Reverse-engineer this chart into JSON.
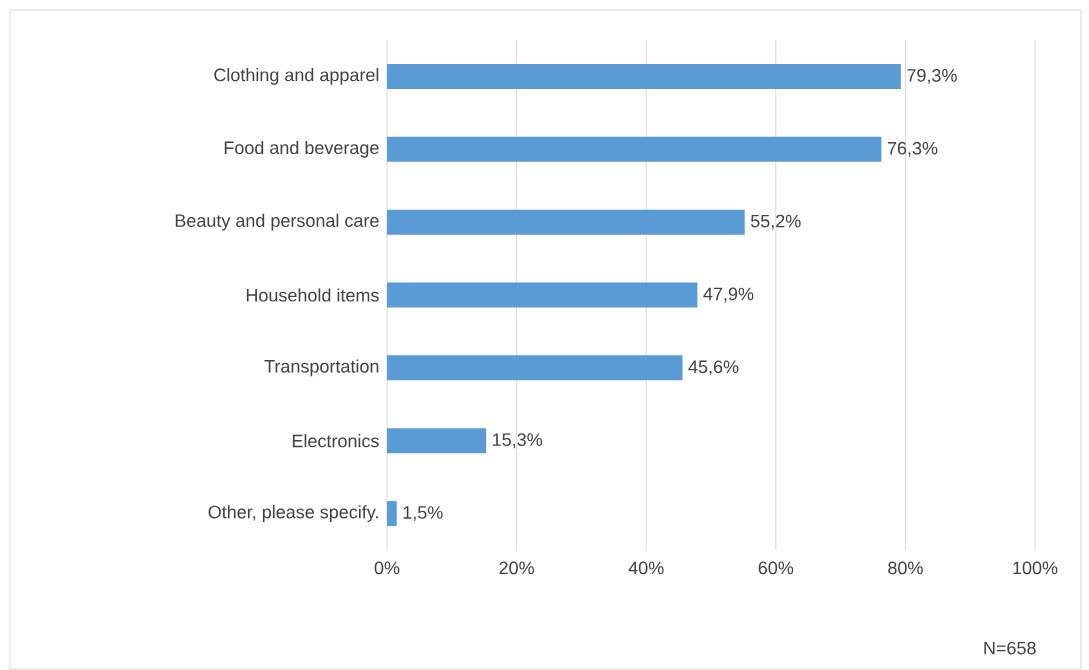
{
  "chart_data": {
    "type": "bar",
    "orientation": "horizontal",
    "categories": [
      "Clothing and apparel",
      "Food and beverage",
      "Beauty and personal care",
      "Household items",
      "Transportation",
      "Electronics",
      "Other, please specify."
    ],
    "values": [
      79.3,
      76.3,
      55.2,
      47.9,
      45.6,
      15.3,
      1.5
    ],
    "value_labels": [
      "79,3%",
      "76,3%",
      "55,2%",
      "47,9%",
      "45,6%",
      "15,3%",
      "1,5%"
    ],
    "color": "#5b9bd5",
    "xlim": [
      0,
      100
    ],
    "xticks": [
      {
        "value": 0,
        "label": "0%"
      },
      {
        "value": 20,
        "label": "20%"
      },
      {
        "value": 40,
        "label": "40%"
      },
      {
        "value": 60,
        "label": "60%"
      },
      {
        "value": 80,
        "label": "80%"
      },
      {
        "value": 100,
        "label": "100%"
      }
    ],
    "grid": "x",
    "annotations": [
      "N=658"
    ]
  }
}
